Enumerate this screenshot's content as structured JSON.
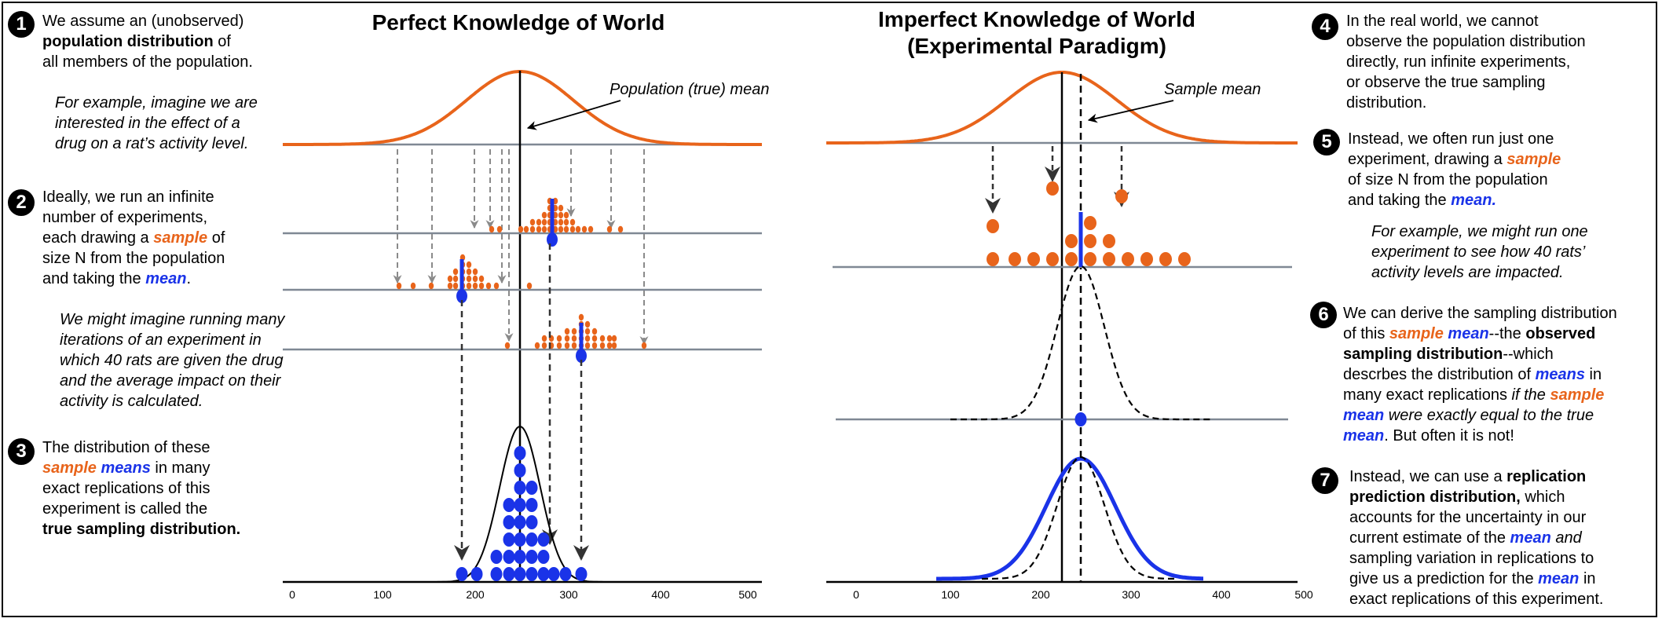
{
  "left_panel": {
    "title": "Perfect Knowledge of World",
    "mean_label": "Population (true) mean",
    "axis_ticks": [
      "0",
      "100",
      "200",
      "300",
      "400",
      "500"
    ]
  },
  "right_panel": {
    "title_line1": "Imperfect Knowledge of World",
    "title_line2": "(Experimental Paradigm)",
    "mean_label": "Sample mean",
    "axis_ticks": [
      "0",
      "100",
      "200",
      "300",
      "400",
      "500"
    ]
  },
  "steps": [
    {
      "n": "1"
    },
    {
      "n": "2"
    },
    {
      "n": "3"
    },
    {
      "n": "4"
    },
    {
      "n": "5"
    },
    {
      "n": "6"
    },
    {
      "n": "7"
    }
  ],
  "text": {
    "s1_a": "We assume an (unobserved)",
    "s1_b": "population distribution",
    "s1_c": " of",
    "s1_d": "all members of the population.",
    "s1_ex": "For example, imagine we are\ninterested in the effect of a\ndrug on a rat’s activity level.",
    "s2_a": "Ideally, we run an infinite\nnumber of experiments,\neach drawing a ",
    "s2_sample": "sample",
    "s2_b": " of\nsize N from the population\nand taking the ",
    "s2_mean": "mean",
    "s2_c": ".",
    "s2_ex": "We might imagine running many\niterations of an experiment in\nwhich 40 rats are given the drug\nand the average impact on their\nactivity is calculated.",
    "s3_a": "The distribution of these",
    "s3_sample": "sample",
    "s3_means": "means",
    "s3_b": " in many",
    "s3_c": "exact replications of this\nexperiment is called the",
    "s3_d": "true sampling distribution.",
    "s4": "In the real world, we cannot\nobserve the population distribution\ndirectly, run infinite experiments,\nor observe the true sampling\ndistribution.",
    "s5_a": "Instead, we often run just one\nexperiment, drawing a ",
    "s5_sample": "sample",
    "s5_b": "\nof size N from the population\nand taking the ",
    "s5_mean": "mean.",
    "s5_ex": "For example, we might run one\nexperiment to see how 40 rats’\nactivity levels are impacted.",
    "s6_a": "We can derive the sampling distribution\nof this ",
    "s6_sample": "sample",
    "s6_mean": "mean",
    "s6_b": "--the ",
    "s6_observed": "observed",
    "s6_c": "sampling distribution",
    "s6_d": "--which\ndescrbes the distribution of ",
    "s6_means": "means",
    "s6_e": " in\nmany exact replications ",
    "s6_f": "if the ",
    "s6_sample2": "sample",
    "s6_mean2": "mean",
    "s6_g": " were exactly equal to the true",
    "s6_mean3": "mean",
    "s6_h": ". But often it is not!",
    "s7_a": "Instead, we can use a ",
    "s7_b": "replication\nprediction distribution,",
    "s7_c": " which\naccounts for the uncertainty in our\ncurrent estimate of the ",
    "s7_mean": "mean",
    "s7_d": " and",
    "s7_e": "\nsampling variation in replications to\ngive us a prediction for the ",
    "s7_mean2": "mean",
    "s7_f": " in\nexact replications of this experiment."
  },
  "colors": {
    "orange": "#e8641b",
    "blue": "#1a33e8",
    "gray": "#7f8894"
  }
}
